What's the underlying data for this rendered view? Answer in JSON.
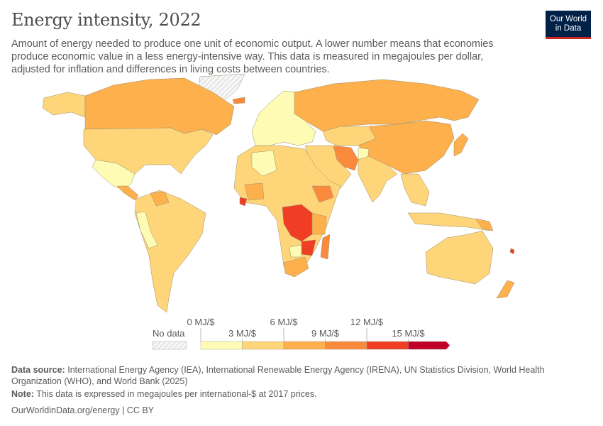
{
  "header": {
    "title": "Energy intensity, 2022",
    "subtitle": "Amount of energy needed to produce one unit of economic output. A lower number means that economies produce economic value in a less energy-intensive way. This data is measured in megajoules per dollar, adjusted for inflation and differences in living costs between countries."
  },
  "logo": {
    "line1": "Our World",
    "line2": "in Data",
    "bg": "#002147",
    "accent": "#ce261e"
  },
  "chart_data": {
    "type": "choropleth",
    "title": "Energy intensity, 2022",
    "unit": "MJ/$",
    "legend": {
      "no_data_label": "No data",
      "ticks": [
        "0 MJ/$",
        "3 MJ/$",
        "6 MJ/$",
        "9 MJ/$",
        "12 MJ/$",
        "15 MJ/$"
      ],
      "bins": [
        {
          "range": [
            0,
            3
          ],
          "color": "#fefcb4"
        },
        {
          "range": [
            3,
            6
          ],
          "color": "#fed679"
        },
        {
          "range": [
            6,
            9
          ],
          "color": "#fdb04b"
        },
        {
          "range": [
            9,
            12
          ],
          "color": "#fb8a3c"
        },
        {
          "range": [
            12,
            15
          ],
          "color": "#ef3e23"
        },
        {
          "range": [
            15,
            null
          ],
          "color": "#c10026"
        }
      ]
    }
  },
  "footer": {
    "source_label": "Data source:",
    "source": "International Energy Agency (IEA), International Renewable Energy Agency (IRENA), UN Statistics Division, World Health Organization (WHO), and World Bank (2025)",
    "note_label": "Note:",
    "note": "This data is expressed in megajoules per international-$ at 2017 prices.",
    "link": "OurWorldinData.org/energy | CC BY"
  }
}
